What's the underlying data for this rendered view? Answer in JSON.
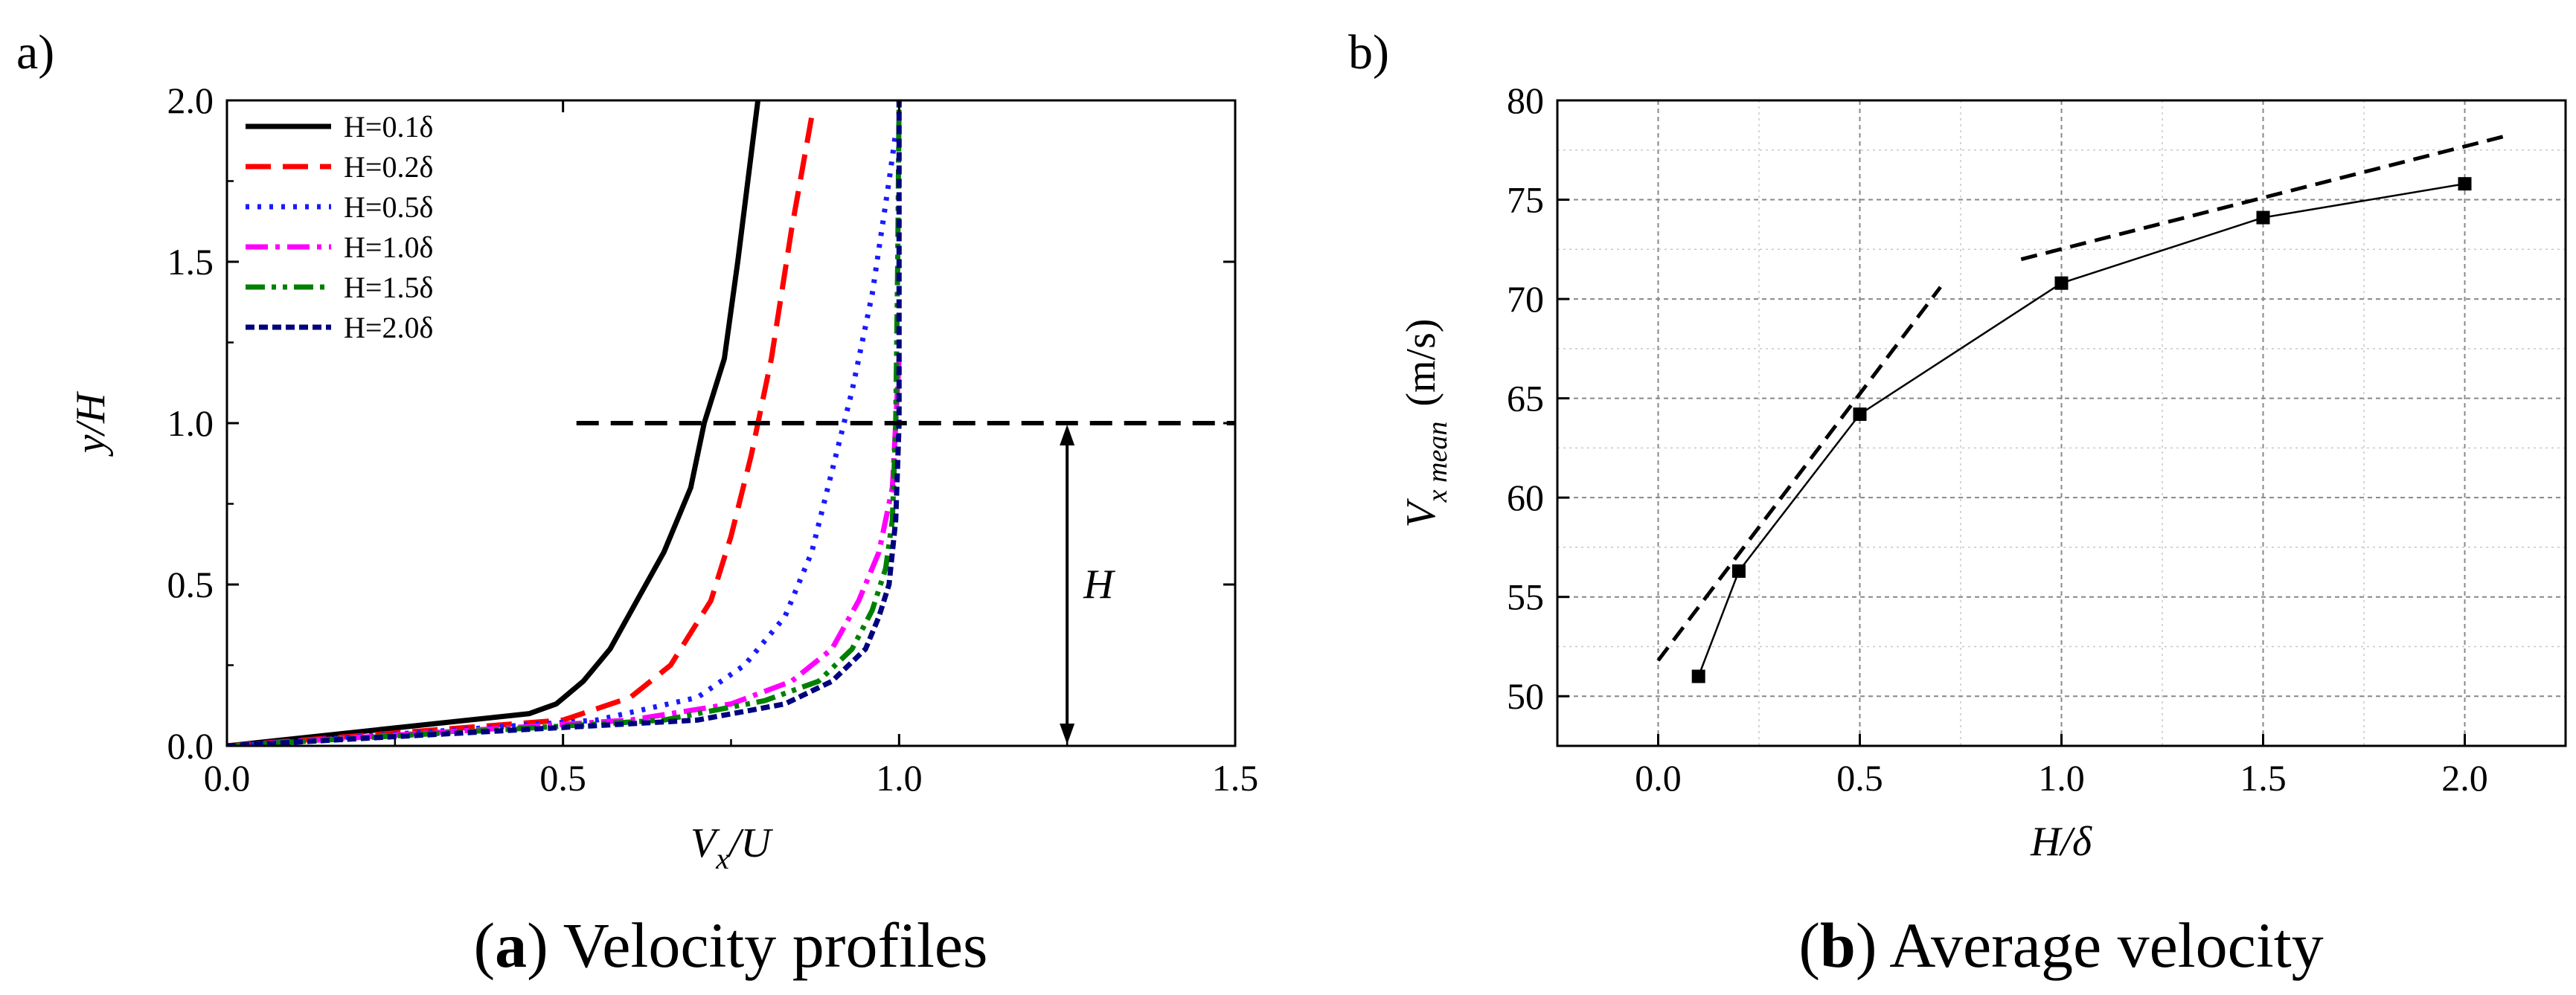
{
  "panel_a_label": "a)",
  "panel_b_label": "b)",
  "caption_a": {
    "letter": "a",
    "text": " Velocity profiles"
  },
  "caption_b": {
    "letter": "b",
    "text": " Average velocity"
  },
  "chart_data": [
    {
      "type": "line",
      "title": "Velocity profiles",
      "xlabel": {
        "main": "V",
        "sub": "x",
        "rest": "/U"
      },
      "ylabel": "y/H",
      "xlim": [
        0.0,
        1.5
      ],
      "ylim": [
        0.0,
        2.0
      ],
      "xticks": [
        "0.0",
        "0.5",
        "1.0",
        "1.5"
      ],
      "yticks": [
        "0.0",
        "0.5",
        "1.0",
        "1.5",
        "2.0"
      ],
      "legend_position": "top-left",
      "annotation": {
        "text": "H",
        "y_line": 1.0,
        "x_line_from": 0.52,
        "x_arrow": 1.25
      },
      "series": [
        {
          "name": "H=0.1δ",
          "h": "0.1",
          "color": "#000000",
          "style": "solid",
          "points": [
            [
              0,
              0
            ],
            [
              0.45,
              0.1
            ],
            [
              0.49,
              0.13
            ],
            [
              0.53,
              0.2
            ],
            [
              0.57,
              0.3
            ],
            [
              0.61,
              0.45
            ],
            [
              0.65,
              0.6
            ],
            [
              0.69,
              0.8
            ],
            [
              0.71,
              1.0
            ],
            [
              0.74,
              1.2
            ],
            [
              0.76,
              1.5
            ],
            [
              0.79,
              2.0
            ]
          ]
        },
        {
          "name": "H=0.2δ",
          "h": "0.2",
          "color": "#ff0000",
          "style": "dash",
          "points": [
            [
              0,
              0
            ],
            [
              0.5,
              0.08
            ],
            [
              0.6,
              0.15
            ],
            [
              0.66,
              0.25
            ],
            [
              0.72,
              0.45
            ],
            [
              0.75,
              0.65
            ],
            [
              0.78,
              0.9
            ],
            [
              0.81,
              1.2
            ],
            [
              0.84,
              1.6
            ],
            [
              0.87,
              1.95
            ]
          ]
        },
        {
          "name": "H=0.5δ",
          "h": "0.5",
          "color": "#1a1aff",
          "style": "dot",
          "points": [
            [
              0,
              0
            ],
            [
              0.55,
              0.08
            ],
            [
              0.7,
              0.15
            ],
            [
              0.77,
              0.25
            ],
            [
              0.83,
              0.4
            ],
            [
              0.87,
              0.6
            ],
            [
              0.9,
              0.85
            ],
            [
              0.93,
              1.1
            ],
            [
              0.96,
              1.4
            ],
            [
              0.985,
              1.75
            ],
            [
              0.995,
              1.9
            ]
          ]
        },
        {
          "name": "H=1.0δ",
          "h": "1.0",
          "color": "#ff00ff",
          "style": "dashdot",
          "points": [
            [
              0,
              0
            ],
            [
              0.6,
              0.08
            ],
            [
              0.75,
              0.13
            ],
            [
              0.84,
              0.2
            ],
            [
              0.9,
              0.3
            ],
            [
              0.94,
              0.45
            ],
            [
              0.97,
              0.6
            ],
            [
              0.99,
              0.8
            ],
            [
              0.995,
              1.0
            ],
            [
              1.0,
              1.2
            ]
          ]
        },
        {
          "name": "H=1.5δ",
          "h": "1.5",
          "color": "#008000",
          "style": "dashdotdot",
          "points": [
            [
              0,
              0
            ],
            [
              0.65,
              0.08
            ],
            [
              0.8,
              0.14
            ],
            [
              0.88,
              0.2
            ],
            [
              0.93,
              0.3
            ],
            [
              0.96,
              0.42
            ],
            [
              0.98,
              0.55
            ],
            [
              0.99,
              0.7
            ],
            [
              0.995,
              1.0
            ],
            [
              0.998,
              1.5
            ],
            [
              1.0,
              2.0
            ]
          ]
        },
        {
          "name": "H=2.0δ",
          "h": "2.0",
          "color": "#00007f",
          "style": "shortdash",
          "points": [
            [
              0,
              0
            ],
            [
              0.7,
              0.08
            ],
            [
              0.83,
              0.13
            ],
            [
              0.9,
              0.2
            ],
            [
              0.95,
              0.3
            ],
            [
              0.97,
              0.4
            ],
            [
              0.985,
              0.5
            ],
            [
              0.995,
              0.7
            ],
            [
              1.0,
              1.0
            ],
            [
              1.0,
              2.0
            ]
          ]
        }
      ]
    },
    {
      "type": "scatter",
      "title": "Average velocity",
      "xlabel": "H/δ",
      "ylabel": {
        "main": "V",
        "sub": "x mean",
        "unit": "(m/s)"
      },
      "xlim": [
        -0.25,
        2.25
      ],
      "ylim": [
        47.5,
        80
      ],
      "xticks": [
        "0.0",
        "0.5",
        "1.0",
        "1.5",
        "2.0"
      ],
      "yticks": [
        "50",
        "55",
        "60",
        "65",
        "70",
        "75",
        "80"
      ],
      "grid": true,
      "series": [
        {
          "name": "V_x mean",
          "x": [
            0.1,
            0.2,
            0.5,
            1.0,
            1.5,
            2.0
          ],
          "y": [
            51.0,
            56.3,
            64.2,
            70.8,
            74.1,
            75.8
          ]
        }
      ],
      "trend_lines": [
        {
          "x": [
            0.0,
            0.7
          ],
          "y": [
            51.8,
            70.6
          ]
        },
        {
          "x": [
            0.9,
            2.1
          ],
          "y": [
            72.0,
            78.2
          ]
        }
      ]
    }
  ]
}
